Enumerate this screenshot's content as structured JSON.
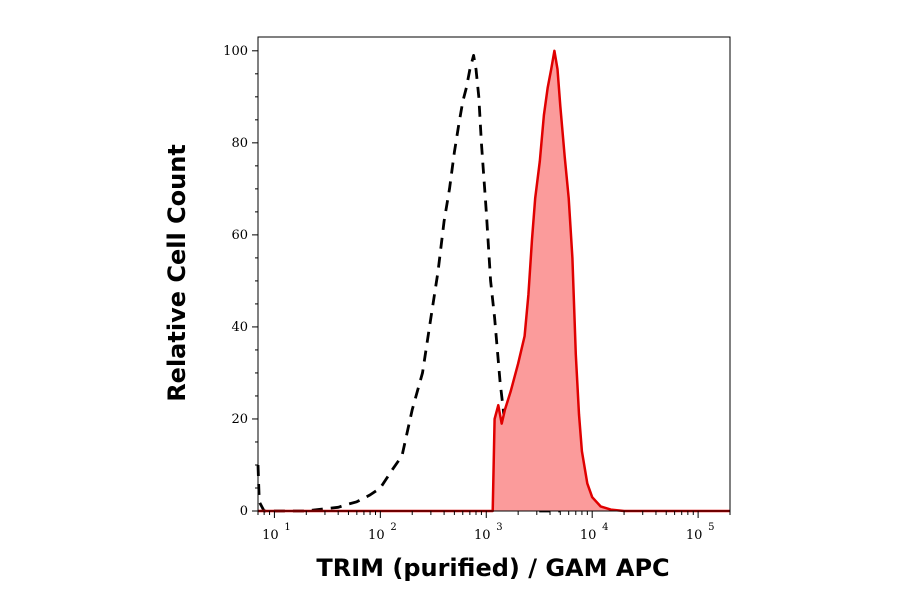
{
  "chart_data": {
    "type": "area",
    "title": "",
    "xlabel": "TRIM (purified) / GAM APC",
    "ylabel": "Relative Cell Count",
    "x_scale": "log",
    "xlim": [
      7,
      200000
    ],
    "ylim": [
      0,
      103
    ],
    "grid": false,
    "x_ticks": [
      {
        "base": "10",
        "exp": "1",
        "value": 10
      },
      {
        "base": "10",
        "exp": "2",
        "value": 100
      },
      {
        "base": "10",
        "exp": "3",
        "value": 1000
      },
      {
        "base": "10",
        "exp": "4",
        "value": 10000
      },
      {
        "base": "10",
        "exp": "5",
        "value": 100000
      }
    ],
    "y_ticks": [
      "0",
      "20",
      "40",
      "60",
      "80",
      "100"
    ],
    "series": [
      {
        "style": "dashed-line",
        "color": "#000000",
        "points": [
          [
            7,
            10
          ],
          [
            7.2,
            2
          ],
          [
            8,
            0
          ],
          [
            20,
            0
          ],
          [
            30,
            0.5
          ],
          [
            40,
            0.8
          ],
          [
            50,
            1.5
          ],
          [
            60,
            2
          ],
          [
            80,
            3.5
          ],
          [
            100,
            5
          ],
          [
            130,
            9
          ],
          [
            160,
            12
          ],
          [
            200,
            22
          ],
          [
            250,
            30
          ],
          [
            300,
            42
          ],
          [
            350,
            52
          ],
          [
            400,
            63
          ],
          [
            450,
            70
          ],
          [
            500,
            78
          ],
          [
            550,
            84
          ],
          [
            600,
            89
          ],
          [
            650,
            92
          ],
          [
            700,
            96
          ],
          [
            760,
            99
          ],
          [
            800,
            96
          ],
          [
            850,
            90
          ],
          [
            900,
            80
          ],
          [
            1000,
            65
          ],
          [
            1100,
            50
          ],
          [
            1200,
            42
          ],
          [
            1350,
            28
          ],
          [
            1500,
            19
          ],
          [
            1700,
            10
          ],
          [
            2000,
            5
          ],
          [
            2500,
            1
          ],
          [
            3000,
            0
          ],
          [
            5000,
            0
          ]
        ]
      },
      {
        "style": "filled-area",
        "color": "#e00000",
        "fill": "#fb9b9b",
        "points": [
          [
            7,
            0
          ],
          [
            1150,
            0
          ],
          [
            1200,
            20
          ],
          [
            1300,
            23
          ],
          [
            1400,
            19
          ],
          [
            1500,
            22
          ],
          [
            1700,
            26
          ],
          [
            2000,
            32
          ],
          [
            2300,
            38
          ],
          [
            2500,
            47
          ],
          [
            2700,
            59
          ],
          [
            2900,
            68
          ],
          [
            3200,
            76
          ],
          [
            3500,
            86
          ],
          [
            3800,
            92
          ],
          [
            4100,
            96
          ],
          [
            4400,
            100
          ],
          [
            4700,
            96
          ],
          [
            5000,
            88
          ],
          [
            5500,
            77
          ],
          [
            6000,
            68
          ],
          [
            6500,
            55
          ],
          [
            7000,
            34
          ],
          [
            7500,
            21
          ],
          [
            8000,
            13
          ],
          [
            9000,
            6
          ],
          [
            10000,
            3
          ],
          [
            12000,
            1
          ],
          [
            15000,
            0.3
          ],
          [
            20000,
            0
          ],
          [
            200000,
            0
          ]
        ]
      }
    ]
  }
}
